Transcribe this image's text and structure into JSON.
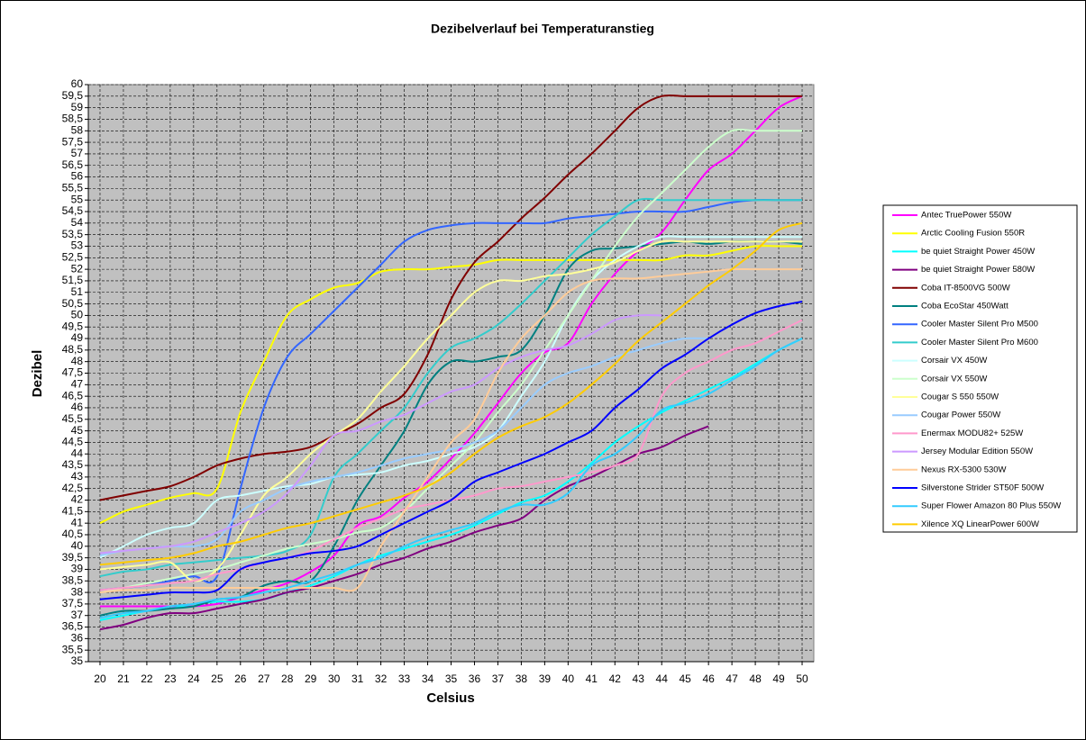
{
  "chart_data": {
    "type": "line",
    "title": "Dezibelverlauf bei Temperaturanstieg",
    "x_label": "Celsius",
    "y_label": "Dezibel",
    "x": [
      20,
      21,
      22,
      23,
      24,
      25,
      26,
      27,
      28,
      29,
      30,
      31,
      32,
      33,
      34,
      35,
      36,
      37,
      38,
      39,
      40,
      41,
      42,
      43,
      44,
      45,
      46,
      47,
      48,
      49,
      50
    ],
    "xlim": [
      19.5,
      50.5
    ],
    "xticks": [
      20,
      21,
      22,
      23,
      24,
      25,
      26,
      27,
      28,
      29,
      30,
      31,
      32,
      33,
      34,
      35,
      36,
      37,
      38,
      39,
      40,
      41,
      42,
      43,
      44,
      45,
      46,
      47,
      48,
      49,
      50
    ],
    "ylim": [
      35,
      60
    ],
    "yticks": [
      35,
      {
        "value": 35.5,
        "label": "35,5"
      },
      36,
      {
        "value": 36.5,
        "label": "36,5"
      },
      37,
      {
        "value": 37.5,
        "label": "37,5"
      },
      38,
      {
        "value": 38.5,
        "label": "38,5"
      },
      39,
      {
        "value": 39.5,
        "label": "39,5"
      },
      40,
      {
        "value": 40.5,
        "label": "40,5"
      },
      41,
      {
        "value": 41.5,
        "label": "41,5"
      },
      42,
      {
        "value": 42.5,
        "label": "42,5"
      },
      43,
      {
        "value": 43.5,
        "label": "43,5"
      },
      44,
      {
        "value": 44.5,
        "label": "44,5"
      },
      45,
      {
        "value": 45.5,
        "label": "45,5"
      },
      46,
      {
        "value": 46.5,
        "label": "46,5"
      },
      47,
      {
        "value": 47.5,
        "label": "47,5"
      },
      48,
      {
        "value": 48.5,
        "label": "48,5"
      },
      49,
      {
        "value": 49.5,
        "label": "49,5"
      },
      50,
      {
        "value": 50.5,
        "label": "50,5"
      },
      51,
      {
        "value": 51.5,
        "label": "51,5"
      },
      52,
      {
        "value": 52.5,
        "label": "52,5"
      },
      53,
      {
        "value": 53.5,
        "label": "53,5"
      },
      54,
      {
        "value": 54.5,
        "label": "54,5"
      },
      55,
      {
        "value": 55.5,
        "label": "55,5"
      },
      56,
      {
        "value": 56.5,
        "label": "56,5"
      },
      57,
      {
        "value": 57.5,
        "label": "57,5"
      },
      58,
      {
        "value": 58.5,
        "label": "58,5"
      },
      59,
      {
        "value": 59.5,
        "label": "59,5"
      },
      60
    ],
    "grid": true,
    "legend": "right",
    "series": [
      {
        "name": "Antec TruePower  550W",
        "color": "#ff00ff",
        "values": [
          37.4,
          37.4,
          37.4,
          37.4,
          37.4,
          37.5,
          37.8,
          38.1,
          38.4,
          38.9,
          39.6,
          40.9,
          41.3,
          42.1,
          42.8,
          43.8,
          44.9,
          46.2,
          47.5,
          48.4,
          48.8,
          50.5,
          51.8,
          52.8,
          53.6,
          55,
          56.3,
          57,
          58,
          59,
          59.5
        ]
      },
      {
        "name": "Arctic Cooling Fusion 550R",
        "color": "#ffff00",
        "values": [
          41,
          41.5,
          41.8,
          42.1,
          42.3,
          42.5,
          45.8,
          48,
          50,
          50.7,
          51.2,
          51.4,
          51.9,
          52,
          52,
          52.1,
          52.2,
          52.4,
          52.4,
          52.4,
          52.4,
          52.4,
          52.4,
          52.4,
          52.4,
          52.6,
          52.6,
          52.8,
          53,
          53,
          53
        ]
      },
      {
        "name": "be quiet Straight Power 450W",
        "color": "#00ffff",
        "values": [
          36.8,
          37,
          37.2,
          37.3,
          37.5,
          37.6,
          37.6,
          37.7,
          38,
          38.3,
          38.7,
          39.2,
          39.6,
          39.9,
          40.2,
          40.5,
          40.9,
          41.4,
          41.9,
          42.2,
          42.8,
          43.6,
          44.5,
          45.2,
          45.8,
          46.3,
          46.8,
          47.3,
          47.9,
          48.5,
          49
        ]
      },
      {
        "name": "be quiet Straight Power 580W",
        "color": "#800080",
        "values": [
          36.4,
          36.6,
          36.9,
          37.1,
          37.1,
          37.3,
          37.5,
          37.7,
          38,
          38.2,
          38.5,
          38.8,
          39.2,
          39.5,
          39.9,
          40.2,
          40.6,
          40.9,
          41.2,
          42,
          42.6,
          43,
          43.5,
          44,
          44.3,
          44.8,
          45.2,
          null,
          null,
          null,
          null
        ]
      },
      {
        "name": "Coba IT-8500VG 500W",
        "color": "#800000",
        "values": [
          42,
          42.2,
          42.4,
          42.6,
          43,
          43.5,
          43.8,
          44,
          44.1,
          44.3,
          44.8,
          45.3,
          46,
          46.6,
          48.3,
          50.7,
          52.3,
          53.2,
          54.2,
          55.1,
          56.1,
          57,
          58,
          59,
          59.5,
          59.5,
          59.5,
          59.5,
          59.5,
          59.5,
          59.5
        ]
      },
      {
        "name": "Coba EcoStar 450Watt",
        "color": "#008080",
        "values": [
          37,
          37.2,
          37.2,
          37.3,
          37.4,
          37.7,
          37.8,
          38.3,
          38.5,
          38.5,
          40,
          42,
          43.5,
          45,
          47,
          48,
          48,
          48.2,
          48.5,
          50,
          52,
          52.8,
          52.9,
          53,
          53.1,
          53.2,
          53.1,
          53.2,
          53.2,
          53.2,
          53.1
        ]
      },
      {
        "name": "Cooler Master Silent Pro M500",
        "color": "#3366ff",
        "values": [
          38.1,
          38.2,
          38.3,
          38.5,
          38.7,
          38.7,
          42.5,
          46,
          48.2,
          49.2,
          50.2,
          51.2,
          52.2,
          53.2,
          53.7,
          53.9,
          54,
          54,
          54,
          54,
          54.2,
          54.3,
          54.4,
          54.5,
          54.5,
          54.5,
          54.7,
          54.9,
          55,
          55,
          55
        ]
      },
      {
        "name": "Cooler Master Silent Pro M600",
        "color": "#33cccc",
        "values": [
          38.7,
          38.9,
          39,
          39.2,
          39.3,
          39.4,
          39.5,
          39.6,
          39.8,
          40.5,
          43,
          44,
          45,
          46,
          47.5,
          48.6,
          49,
          49.6,
          50.5,
          51.5,
          52.5,
          53.5,
          54.3,
          55,
          55,
          55,
          55,
          55,
          55,
          55,
          55
        ]
      },
      {
        "name": "Corsair VX 450W",
        "color": "#ccffff",
        "values": [
          39.5,
          40,
          40.5,
          40.8,
          41,
          42,
          42.2,
          42.4,
          42.6,
          42.7,
          43,
          43.1,
          43.2,
          43.5,
          43.7,
          44,
          44.3,
          45,
          46.5,
          48,
          50,
          51.5,
          52.4,
          53,
          53.4,
          53.4,
          53.4,
          53.4,
          53.4,
          53.4,
          53.4
        ]
      },
      {
        "name": "Corsair VX 550W",
        "color": "#ccffcc",
        "values": [
          38,
          38.2,
          38.4,
          38.6,
          38.8,
          39,
          39.3,
          39.6,
          39.9,
          40.1,
          40.3,
          40.6,
          40.8,
          41.5,
          42.5,
          43.5,
          44.5,
          45.8,
          47,
          48.5,
          50,
          51.5,
          53,
          54.3,
          55.3,
          56.3,
          57.3,
          58,
          58,
          58,
          58
        ]
      },
      {
        "name": "Cougar S 550 550W",
        "color": "#ffff99",
        "values": [
          39,
          39.1,
          39.2,
          39.3,
          38.5,
          39,
          40.5,
          42.2,
          43,
          44,
          44.8,
          45.5,
          46.7,
          47.8,
          49,
          50,
          51,
          51.5,
          51.5,
          51.7,
          51.8,
          52,
          52.3,
          52.8,
          53.2,
          53.2,
          53.2,
          53.2,
          53.2,
          53.2,
          53.2
        ]
      },
      {
        "name": "Cougar Power 550W",
        "color": "#99ccff",
        "values": [
          39.6,
          39.8,
          39.9,
          40,
          40,
          40.3,
          41.5,
          42,
          42.5,
          42.8,
          43,
          43.2,
          43.5,
          43.8,
          44,
          44.2,
          44.5,
          45,
          46,
          47,
          47.5,
          47.8,
          48.2,
          48.5,
          48.8,
          49,
          49,
          null,
          null,
          null,
          null
        ]
      },
      {
        "name": "Enermax MODU82+ 525W",
        "color": "#ff99cc",
        "values": [
          38.1,
          38.2,
          38.3,
          38.4,
          38.5,
          38.8,
          39,
          39.3,
          39.5,
          39.8,
          40.3,
          40.8,
          41.2,
          41.6,
          41.8,
          42,
          42.2,
          42.5,
          42.6,
          42.8,
          43,
          43.2,
          43.5,
          44,
          46.5,
          47.5,
          48,
          48.5,
          48.8,
          49.3,
          49.8
        ]
      },
      {
        "name": "Jersey Modular Edition 550W",
        "color": "#cc99ff",
        "values": [
          39.7,
          39.8,
          39.9,
          40,
          40.2,
          40.6,
          41,
          41.5,
          42.3,
          43.5,
          44.8,
          45,
          45.4,
          45.7,
          46.2,
          46.7,
          47,
          47.7,
          48.2,
          48.5,
          48.7,
          49.2,
          49.8,
          50,
          50,
          null,
          null,
          null,
          null,
          null,
          null
        ]
      },
      {
        "name": "Nexus RX-5300 530W",
        "color": "#ffcc99",
        "values": [
          38,
          38.1,
          38.1,
          38.2,
          38.2,
          38.2,
          38.2,
          38.2,
          38.2,
          38.2,
          38.2,
          38.2,
          40,
          41.5,
          43,
          44.5,
          45.5,
          47.5,
          49,
          50,
          51,
          51.5,
          51.6,
          51.6,
          51.7,
          51.8,
          51.9,
          52,
          52,
          52,
          52
        ]
      },
      {
        "name": "Silverstone Strider ST50F 500W",
        "color": "#0000ff",
        "values": [
          37.7,
          37.8,
          37.9,
          38,
          38,
          38.1,
          39,
          39.3,
          39.5,
          39.7,
          39.8,
          40,
          40.5,
          41,
          41.5,
          42,
          42.8,
          43.2,
          43.6,
          44,
          44.5,
          45,
          46,
          46.8,
          47.7,
          48.3,
          49,
          49.6,
          50.1,
          50.4,
          50.6
        ]
      },
      {
        "name": "Super Flower Amazon 80 Plus 550W",
        "color": "#33ccff",
        "values": [
          36.9,
          37.1,
          37.2,
          37.4,
          37.5,
          37.7,
          37.8,
          38,
          38.2,
          38.5,
          38.8,
          39.2,
          39.5,
          40,
          40.4,
          40.7,
          41,
          41.5,
          41.8,
          41.8,
          42.3,
          43.5,
          44,
          44.8,
          45.9,
          46.2,
          46.6,
          47.2,
          47.8,
          48.5,
          49
        ]
      },
      {
        "name": "Xilence XQ LinearPower 600W",
        "color": "#ffcc00",
        "values": [
          39.2,
          39.3,
          39.4,
          39.5,
          39.7,
          40,
          40.2,
          40.5,
          40.8,
          41,
          41.3,
          41.6,
          41.9,
          42.2,
          42.6,
          43.2,
          44,
          44.7,
          45.2,
          45.6,
          46.2,
          47,
          47.9,
          48.9,
          49.7,
          50.5,
          51.3,
          52,
          52.8,
          53.7,
          54
        ]
      }
    ]
  }
}
